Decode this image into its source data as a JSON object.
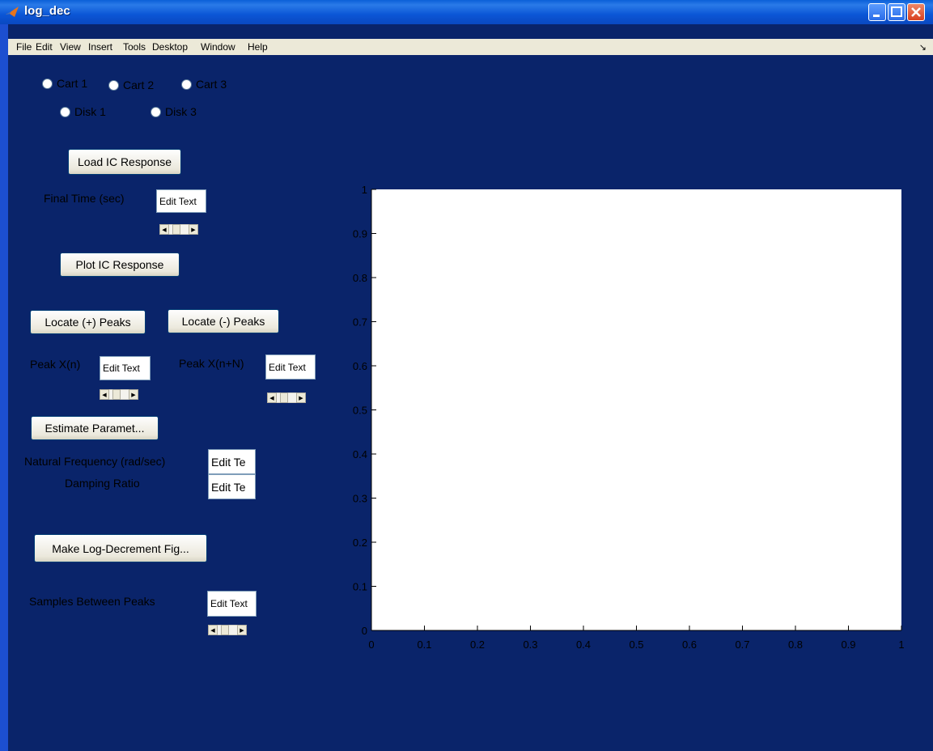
{
  "window": {
    "title": "log_dec"
  },
  "menu": [
    "File",
    "Edit",
    "View",
    "Insert",
    "Tools",
    "Desktop",
    "Window",
    "Help"
  ],
  "radios": {
    "cart1": "Cart 1",
    "cart2": "Cart 2",
    "cart3": "Cart 3",
    "disk1": "Disk 1",
    "disk3": "Disk 3"
  },
  "buttons": {
    "load_ic": "Load IC Response",
    "plot_ic": "Plot IC Response",
    "locate_pos": "Locate (+) Peaks",
    "locate_neg": "Locate (-) Peaks",
    "estimate": "Estimate Paramet...",
    "make_fig": "Make Log-Decrement Fig..."
  },
  "labels": {
    "final_time": "Final Time (sec)",
    "peak_xn": "Peak X(n)",
    "peak_xnN": "Peak X(n+N)",
    "nat_freq": "Natural Frequency (rad/sec)",
    "damping": "Damping Ratio",
    "samples": "Samples Between Peaks"
  },
  "edits": {
    "final_time": "Edit Text",
    "peak_xn": "Edit Text",
    "peak_xnN": "Edit Text",
    "nat_freq": "Edit Te",
    "damping": "Edit Te",
    "samples": "Edit Text"
  },
  "chart_data": {
    "type": "line",
    "series": [],
    "xlim": [
      0,
      1
    ],
    "ylim": [
      0,
      1
    ],
    "x_ticks": [
      "0",
      "0.1",
      "0.2",
      "0.3",
      "0.4",
      "0.5",
      "0.6",
      "0.7",
      "0.8",
      "0.9",
      "1"
    ],
    "y_ticks": [
      "0",
      "0.1",
      "0.2",
      "0.3",
      "0.4",
      "0.5",
      "0.6",
      "0.7",
      "0.8",
      "0.9",
      "1"
    ],
    "grid": false
  }
}
